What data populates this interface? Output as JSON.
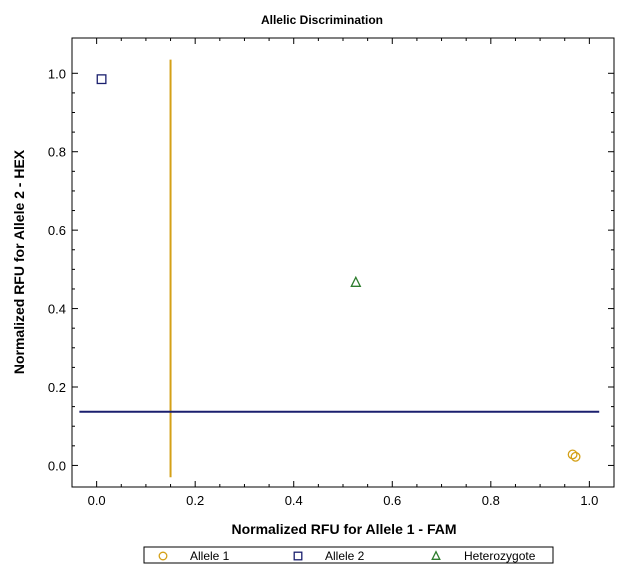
{
  "chart_data": {
    "type": "scatter",
    "title": "Allelic Discrimination",
    "xlabel": "Normalized RFU for Allele 1 - FAM",
    "ylabel": "Normalized RFU for Allele 2 - HEX",
    "xlim": [
      -0.05,
      1.05
    ],
    "ylim": [
      -0.055,
      1.09
    ],
    "x_ticks": [
      "0.0",
      "0.2",
      "0.4",
      "0.6",
      "0.8",
      "1.0"
    ],
    "y_ticks": [
      "0.0",
      "0.2",
      "0.4",
      "0.6",
      "0.8",
      "1.0"
    ],
    "grid": false,
    "legend_position": "bottom",
    "series": [
      {
        "name": "Allele 1",
        "marker": "circle",
        "color": "#d4a017",
        "points": [
          [
            0.966,
            0.028
          ],
          [
            0.972,
            0.022
          ]
        ]
      },
      {
        "name": "Allele 2",
        "marker": "square",
        "color": "#1a1f6e",
        "points": [
          [
            0.01,
            0.985
          ]
        ]
      },
      {
        "name": "Heterozygote",
        "marker": "triangle",
        "color": "#2e7d2e",
        "points": [
          [
            0.526,
            0.467
          ]
        ]
      }
    ],
    "threshold_lines": [
      {
        "orientation": "vertical",
        "value": 0.15,
        "y_range": [
          -0.03,
          1.035
        ],
        "color": "#d4a017"
      },
      {
        "orientation": "horizontal",
        "value": 0.137,
        "x_range": [
          -0.035,
          1.02
        ],
        "color": "#1a1f6e"
      }
    ]
  }
}
